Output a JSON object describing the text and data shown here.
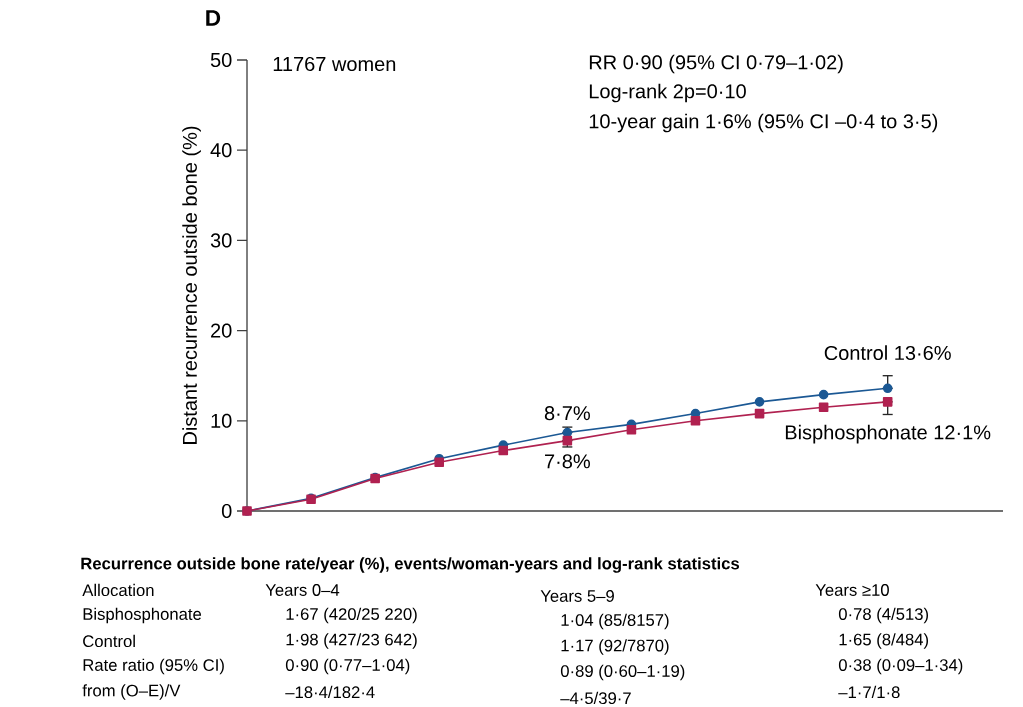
{
  "chart_data": {
    "type": "line",
    "title": "D",
    "ylabel": "Distant recurrence outside bone (%)",
    "categories": [
      null,
      null,
      null,
      null,
      null,
      null,
      null,
      null,
      null,
      null,
      null
    ],
    "ylim": [
      0,
      50
    ],
    "yticks": [
      0,
      10,
      20,
      30,
      40,
      50
    ],
    "series": [
      {
        "color": "#1b5894",
        "marker": "circle",
        "values": [
          0,
          1.4,
          3.7,
          5.8,
          7.3,
          8.7,
          9.6,
          10.8,
          12.1,
          12.9,
          13.6
        ],
        "errors": [
          null,
          null,
          null,
          null,
          null,
          [
            8.7,
            9.3
          ],
          null,
          null,
          null,
          null,
          [
            13.6,
            15.0
          ]
        ]
      },
      {
        "color": "#b02150",
        "marker": "square",
        "values": [
          0,
          1.3,
          3.6,
          5.4,
          6.7,
          7.8,
          9.0,
          10.0,
          10.8,
          11.5,
          12.1
        ],
        "errors": [
          null,
          null,
          null,
          null,
          null,
          [
            7.1,
            7.8
          ],
          null,
          null,
          null,
          null,
          [
            10.7,
            12.1
          ]
        ]
      }
    ],
    "annotations": [
      {
        "text": "8·7%",
        "y": 8.7
      },
      {
        "text": "7·8%",
        "y": 7.8
      },
      {
        "text": "Control 13·6%",
        "y": 13.6
      },
      {
        "text": "Bisphosphonate 12·1%",
        "y": 12.1
      },
      "11767 women",
      "RR 0·90 (95% CI 0·79–1·02)",
      "Log-rank 2p=0·10",
      "10-year gain 1·6% (95% CI –0·4 to 3·5)",
      "Recurrence outside bone rate/year (%), events/woman-years and log-rank statistics",
      "Allocation",
      "Years 0–4",
      "Years 5–9",
      "Years ≥10",
      "Bisphosphonate",
      "1·67 (420/25 220)",
      "1·04 (85/8157)",
      "0·78 (4/513)",
      "Control",
      "1·98 (427/23 642)",
      "1·17 (92/7870)",
      "1·65 (8/484)",
      "Rate ratio (95% CI)",
      "0·90 (0·77–1·04)",
      "0·89 (0·60–1·19)",
      "0·38 (0·09–1·34)",
      "from (O–E)/V",
      "–18·4/182·4",
      "–4·5/39·7",
      "–1·7/1·8"
    ]
  }
}
